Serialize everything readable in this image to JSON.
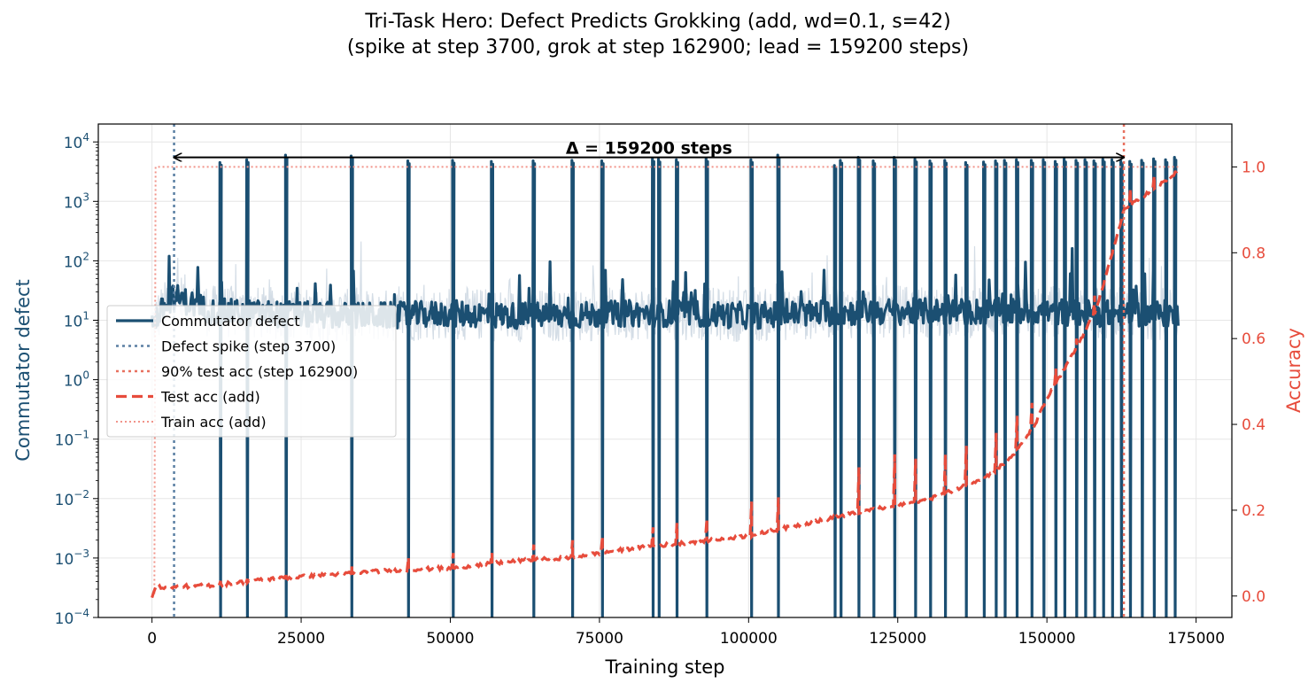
{
  "title": {
    "line1": "Tri-Task Hero: Defect Predicts Grokking (add, wd=0.1, s=42)",
    "line2": "(spike at step 3700, grok at step 162900; lead = 159200 steps)"
  },
  "colors": {
    "defect": "#1b4f72",
    "defect_raw": "#d4dde6",
    "spike_line": "#5a7fa3",
    "grok_line": "#e8705f",
    "test_acc": "#e74c3c",
    "train_acc": "#f1948a",
    "left_axis": "#1b4f72",
    "right_axis": "#e74c3c"
  },
  "chart_data": {
    "type": "line",
    "xlabel": "Training step",
    "ylabel_left": "Commutator defect",
    "ylabel_right": "Accuracy",
    "xlim": [
      -9000,
      181000
    ],
    "ylim_left": [
      0.0001,
      20000
    ],
    "yscale_left": "log",
    "ylim_right": [
      -0.05,
      1.1
    ],
    "grid": true,
    "legend_position": "center-left",
    "x_ticks": [
      0,
      25000,
      50000,
      75000,
      100000,
      125000,
      150000,
      175000
    ],
    "x_tick_labels": [
      "0",
      "25000",
      "50000",
      "75000",
      "100000",
      "125000",
      "150000",
      "175000"
    ],
    "y_left_ticks": [
      0.0001,
      0.001,
      0.01,
      0.1,
      1,
      10,
      100,
      1000,
      10000
    ],
    "y_left_tick_exponents": [
      "−4",
      "−3",
      "−2",
      "−1",
      "0",
      "1",
      "2",
      "3",
      "4"
    ],
    "y_left_tick_base": "10",
    "y_right_ticks": [
      0.0,
      0.2,
      0.4,
      0.6,
      0.8,
      1.0
    ],
    "y_right_tick_labels": [
      "0.0",
      "0.2",
      "0.4",
      "0.6",
      "0.8",
      "1.0"
    ],
    "annotation": {
      "text": "Δ = 159200 steps",
      "from_step": 3700,
      "to_step": 162900,
      "y_value": 5500
    },
    "spike_step": 3700,
    "grok_step": 162900,
    "legend": [
      {
        "label": "Commutator defect",
        "style": "solid-thick",
        "color_key": "defect"
      },
      {
        "label": "Defect spike (step 3700)",
        "style": "dotted",
        "color_key": "spike_line"
      },
      {
        "label": "90% test acc (step 162900)",
        "style": "dotted",
        "color_key": "grok_line"
      },
      {
        "label": "Test acc (add)",
        "style": "dashed",
        "color_key": "test_acc"
      },
      {
        "label": "Train acc (add)",
        "style": "dotted-thin",
        "color_key": "train_acc"
      }
    ],
    "defect_baseline": {
      "x": [
        0,
        3700,
        10000,
        20000,
        30000,
        40000,
        50000,
        60000,
        70000,
        80000,
        90000,
        100000,
        110000,
        120000,
        130000,
        140000,
        150000,
        160000,
        172000
      ],
      "y": [
        9,
        25,
        14,
        13,
        12,
        12,
        13,
        12,
        12,
        13,
        13,
        12,
        13,
        14,
        14,
        14,
        14,
        13,
        13
      ]
    },
    "defect_spikes": {
      "x": [
        11500,
        16000,
        22500,
        33500,
        43000,
        50500,
        57000,
        64000,
        70500,
        75500,
        84000,
        85000,
        88000,
        93000,
        100500,
        105000,
        114500,
        115500,
        118500,
        121000,
        124500,
        128000,
        130500,
        133000,
        136500,
        139500,
        141500,
        143000,
        145000,
        147500,
        149500,
        151500,
        153000,
        155000,
        156500,
        158000,
        159500,
        161000,
        162500,
        164000,
        166000,
        168000,
        170000,
        171500
      ],
      "peak": [
        4500,
        5000,
        6000,
        5800,
        4800,
        4900,
        4700,
        4800,
        4900,
        4800,
        5200,
        5100,
        5000,
        5200,
        5000,
        6000,
        4000,
        4900,
        5500,
        4800,
        5500,
        5100,
        4800,
        4900,
        4500,
        4600,
        4800,
        4900,
        5000,
        4900,
        5000,
        4700,
        5100,
        4900,
        5000,
        4800,
        5100,
        5000,
        4800,
        4700,
        4900,
        5200,
        5000,
        5500
      ],
      "trough": [
        0.0001,
        0.0001,
        0.0001,
        0.0001,
        0.0001,
        0.0001,
        0.0001,
        0.0001,
        0.0001,
        0.0001,
        0.0001,
        0.0001,
        0.0001,
        0.0001,
        0.0001,
        0.0001,
        0.0001,
        0.0001,
        0.0001,
        0.0001,
        0.0001,
        0.0001,
        0.0001,
        0.0001,
        0.0001,
        0.0001,
        0.0001,
        0.0001,
        0.0001,
        0.0001,
        0.0001,
        0.0001,
        0.0001,
        0.0001,
        0.0001,
        0.0001,
        0.0001,
        0.0001,
        0.0001,
        0.0001,
        0.0001,
        0.0001,
        0.0001,
        0.0001
      ]
    },
    "test_acc": {
      "x": [
        0,
        500,
        10000,
        20000,
        30000,
        40000,
        50000,
        60000,
        70000,
        80000,
        90000,
        100000,
        110000,
        120000,
        125000,
        130000,
        135000,
        140000,
        143000,
        145000,
        148000,
        150000,
        153000,
        155000,
        158000,
        160000,
        162900,
        165000,
        168000,
        170000,
        172000
      ],
      "y": [
        0.0,
        0.02,
        0.025,
        0.04,
        0.05,
        0.06,
        0.065,
        0.08,
        0.09,
        0.11,
        0.125,
        0.14,
        0.17,
        0.2,
        0.21,
        0.225,
        0.25,
        0.28,
        0.31,
        0.34,
        0.4,
        0.46,
        0.53,
        0.58,
        0.66,
        0.75,
        0.9,
        0.92,
        0.95,
        0.97,
        0.99
      ]
    },
    "test_acc_bumps": {
      "x": [
        11500,
        16000,
        22500,
        33500,
        43000,
        50500,
        57000,
        64000,
        70500,
        75500,
        84000,
        88000,
        93000,
        100500,
        105000,
        118500,
        124500,
        128000,
        133000,
        136500,
        141500,
        145000,
        147500,
        151500,
        155000,
        158000,
        161000,
        164000,
        168000
      ],
      "y": [
        0.035,
        0.04,
        0.055,
        0.07,
        0.09,
        0.1,
        0.1,
        0.12,
        0.13,
        0.14,
        0.16,
        0.17,
        0.18,
        0.22,
        0.23,
        0.3,
        0.33,
        0.32,
        0.33,
        0.35,
        0.38,
        0.42,
        0.45,
        0.53,
        0.6,
        0.7,
        0.8,
        0.95,
        0.98
      ]
    },
    "train_acc": {
      "x": [
        0,
        400,
        600,
        20000,
        60000,
        100000,
        140000,
        172000
      ],
      "y": [
        0.0,
        0.0,
        1.0,
        1.0,
        1.0,
        1.0,
        1.0,
        1.0
      ]
    }
  }
}
